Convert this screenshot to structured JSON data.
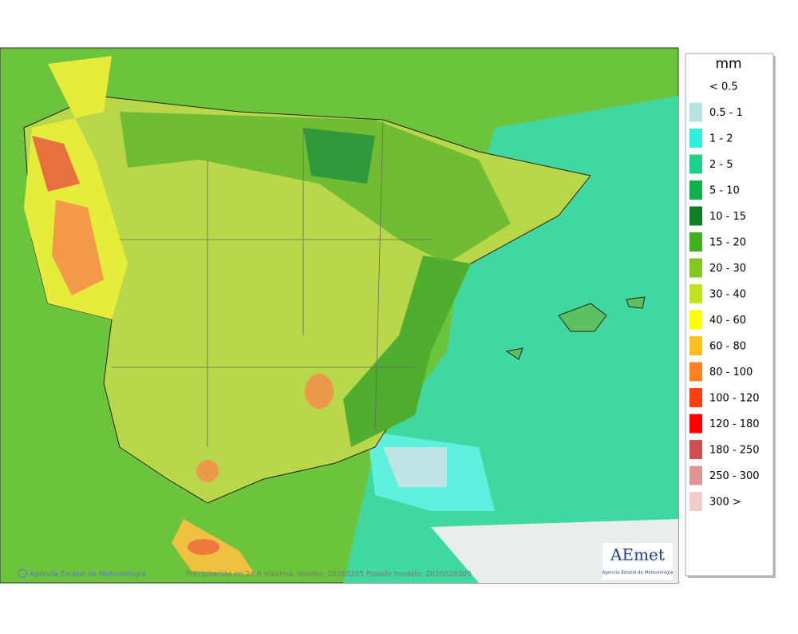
{
  "map": {
    "credit": "Agencia Estatal de Meteorología",
    "caption": "Precipitación en 24 h máxima. Validez: 20260205 Pasada modelo: 2026020300",
    "logo": {
      "name": "AEmet",
      "subtitle": "Agencia Estatal de Meteorología"
    }
  },
  "legend": {
    "title": "mm",
    "items": [
      {
        "label": "< 0.5",
        "color": "#ffffff"
      },
      {
        "label": "0.5 - 1",
        "color": "#b4e2e2"
      },
      {
        "label": "1 - 2",
        "color": "#2ff0df"
      },
      {
        "label": "2 - 5",
        "color": "#1fd08c"
      },
      {
        "label": "5 - 10",
        "color": "#10b04a"
      },
      {
        "label": "10 - 15",
        "color": "#0f7f22"
      },
      {
        "label": "15 - 20",
        "color": "#40b020"
      },
      {
        "label": "20 - 30",
        "color": "#82c81e"
      },
      {
        "label": "30 - 40",
        "color": "#c2e01e"
      },
      {
        "label": "40 - 60",
        "color": "#ffff00"
      },
      {
        "label": "60 - 80",
        "color": "#ffc01e"
      },
      {
        "label": "80 - 100",
        "color": "#ff8020"
      },
      {
        "label": "100 - 120",
        "color": "#ff4010"
      },
      {
        "label": "120 - 180",
        "color": "#ff0000"
      },
      {
        "label": "180 - 250",
        "color": "#d05050"
      },
      {
        "label": "250 - 300",
        "color": "#e09494"
      },
      {
        "label": "300 >",
        "color": "#f2cccc"
      }
    ]
  }
}
